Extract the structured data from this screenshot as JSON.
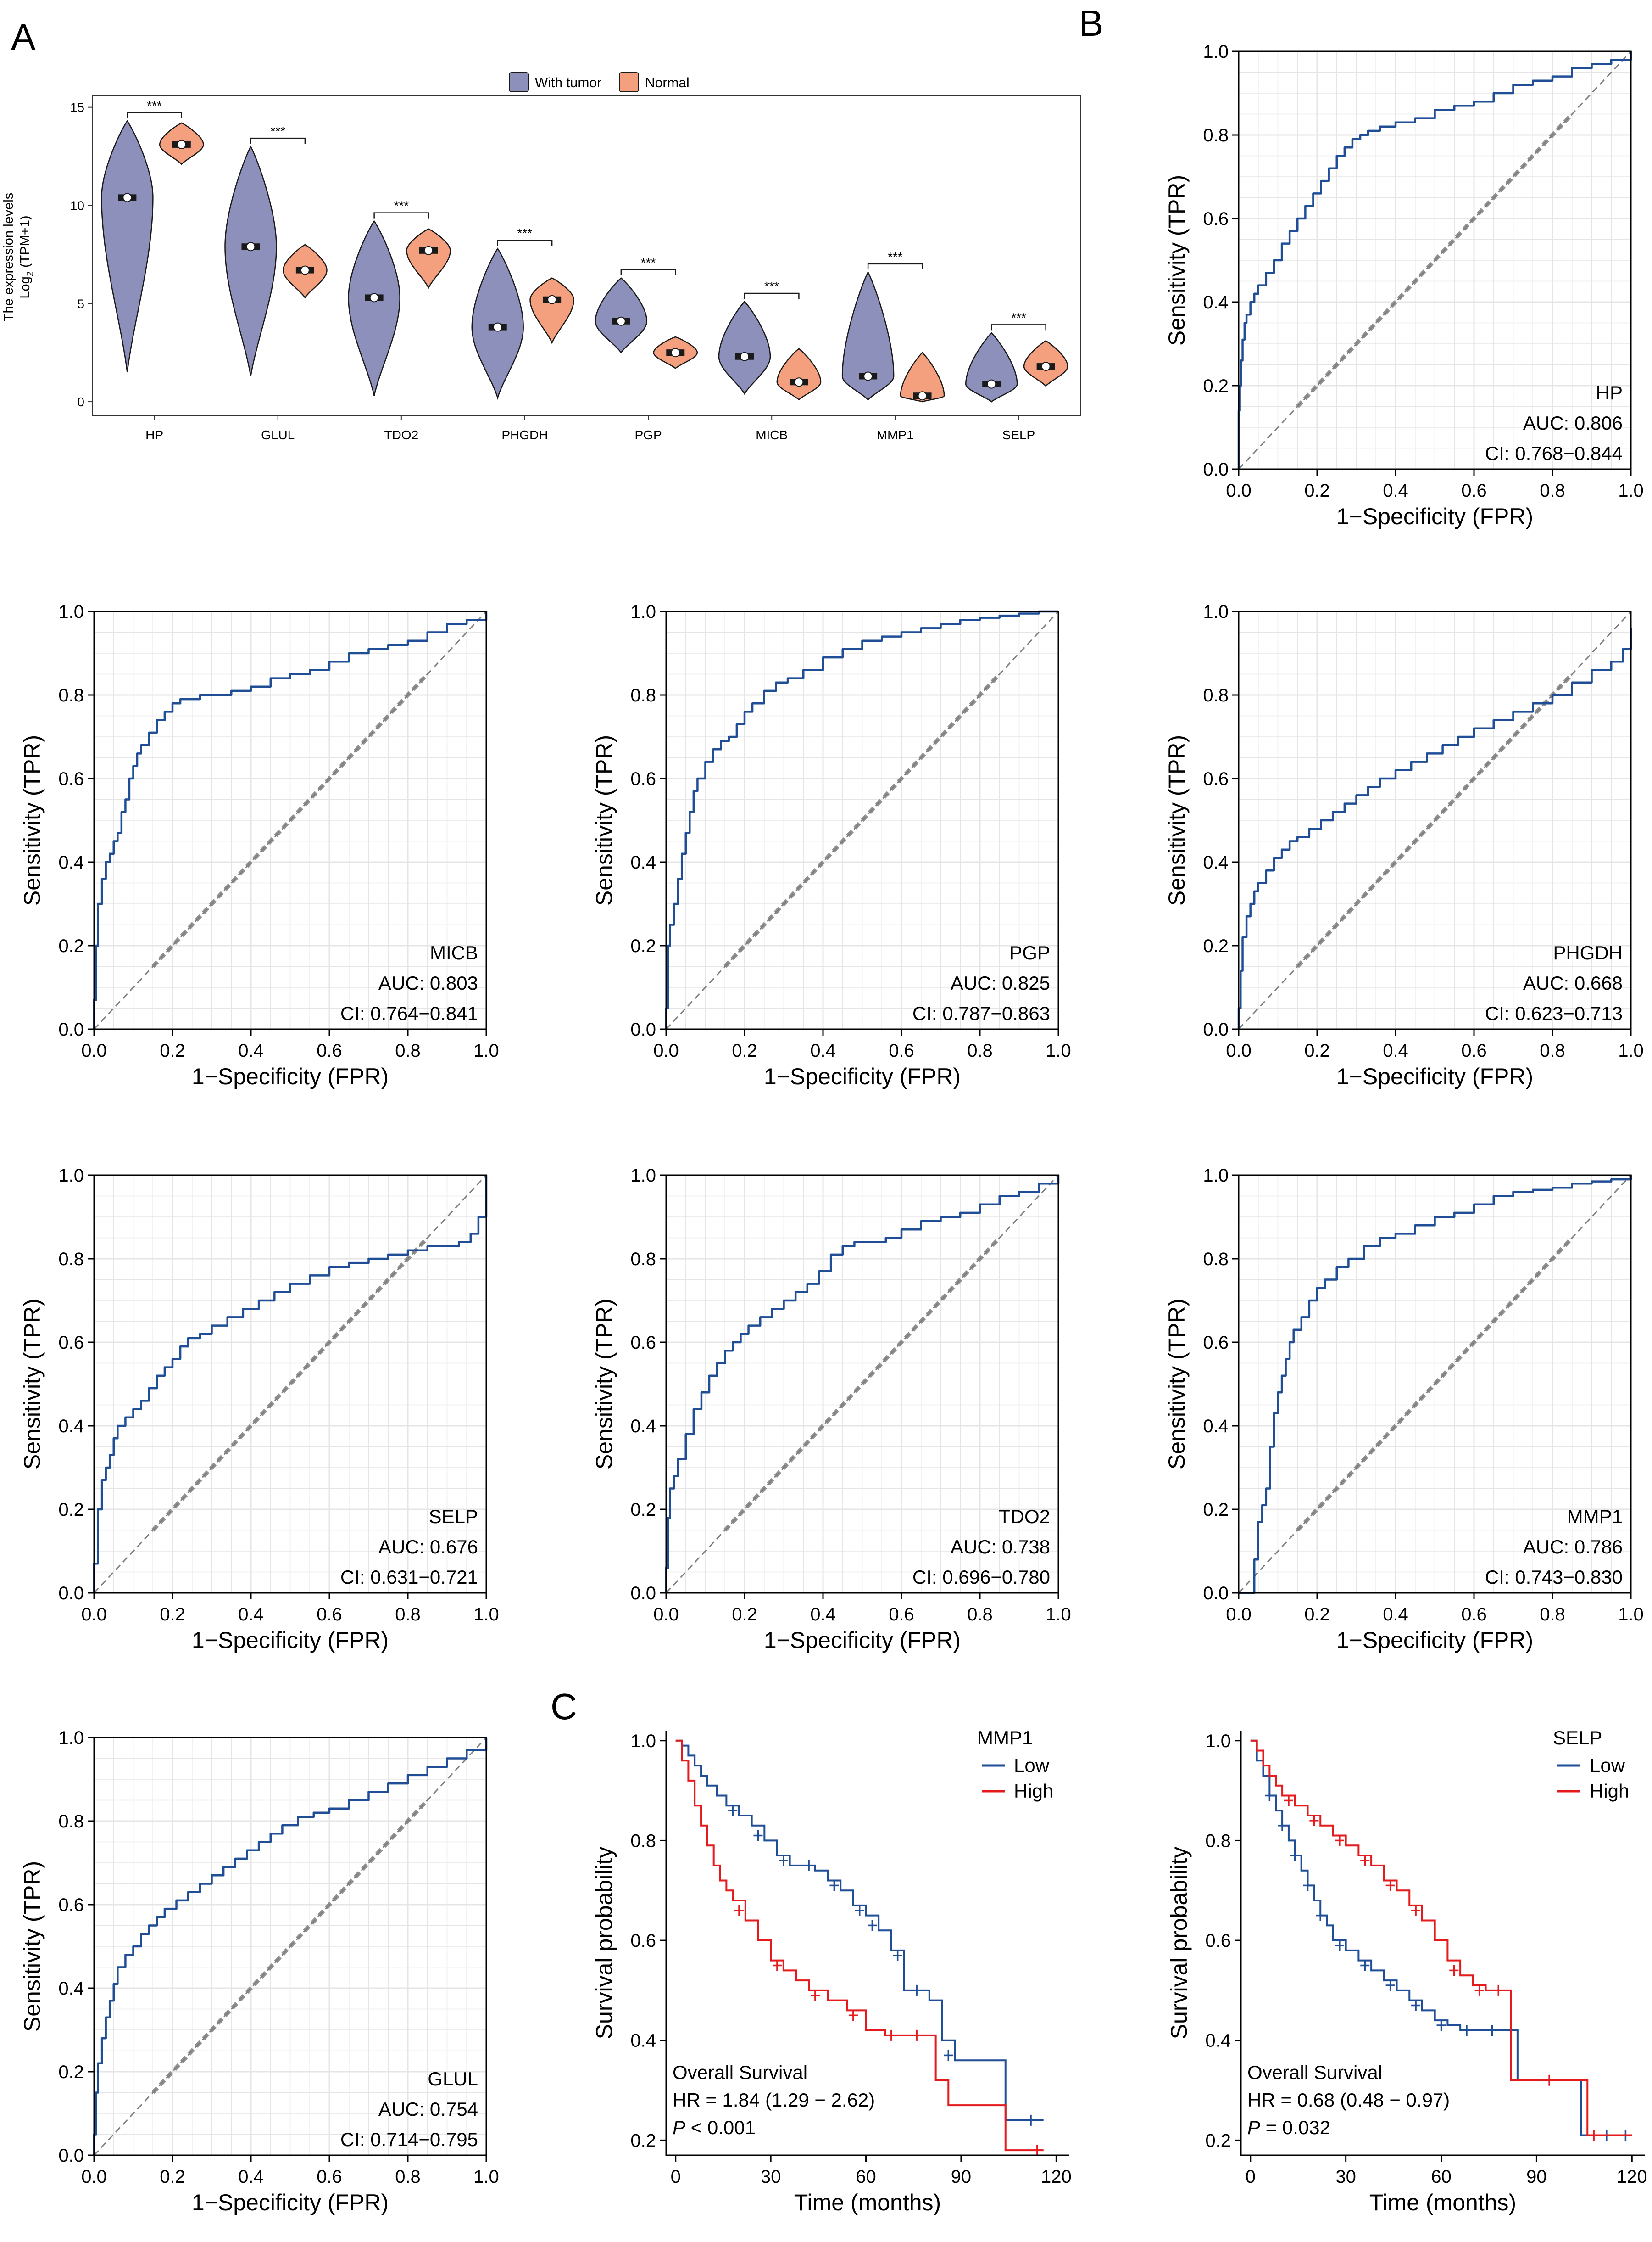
{
  "panel_labels": {
    "A": "A",
    "B": "B",
    "C": "C"
  },
  "colors": {
    "tumor": "#8C90BB",
    "normal": "#F4A07E",
    "roc": "#1F4E96",
    "diag": "#7F7F7F",
    "km_low": "#1F4E96",
    "km_high": "#E41A1C",
    "grid": "#E5E5E5"
  },
  "chart_data": [
    {
      "type": "violin",
      "id": "violin",
      "ylabel_line1": "The expression levels",
      "ylabel_line2": "Log2 (TPM+1)",
      "ylim": [
        -0.7,
        15.6
      ],
      "yticks": [
        0,
        5,
        10,
        15
      ],
      "legend": [
        "With tumor",
        "Normal"
      ],
      "significance": "***",
      "categories": [
        "HP",
        "GLUL",
        "TDO2",
        "PHGDH",
        "PGP",
        "MICB",
        "MMP1",
        "SELP"
      ],
      "series": [
        {
          "name": "With tumor",
          "median": [
            10.4,
            7.9,
            5.3,
            3.8,
            4.1,
            2.3,
            1.3,
            0.9
          ],
          "min": [
            1.5,
            1.3,
            0.3,
            0.2,
            2.5,
            0.4,
            0.1,
            0.0
          ],
          "max": [
            14.3,
            13.0,
            9.2,
            7.8,
            6.3,
            5.1,
            6.6,
            3.5
          ]
        },
        {
          "name": "Normal",
          "median": [
            13.1,
            6.7,
            7.7,
            5.2,
            2.5,
            1.0,
            0.3,
            1.8
          ],
          "min": [
            12.1,
            5.3,
            5.8,
            3.0,
            1.7,
            0.1,
            0.0,
            0.8
          ],
          "max": [
            14.2,
            8.0,
            8.8,
            6.3,
            3.3,
            2.7,
            2.5,
            3.1
          ]
        }
      ]
    },
    {
      "type": "roc",
      "id": "roc-hp",
      "gene": "HP",
      "auc": "AUC: 0.806",
      "ci": "CI: 0.768−0.844",
      "x": [
        0,
        0,
        0.003,
        0.006,
        0.01,
        0.015,
        0.02,
        0.03,
        0.04,
        0.05,
        0.07,
        0.09,
        0.11,
        0.13,
        0.15,
        0.17,
        0.19,
        0.21,
        0.23,
        0.25,
        0.27,
        0.29,
        0.31,
        0.33,
        0.36,
        0.4,
        0.45,
        0.5,
        0.55,
        0.6,
        0.65,
        0.7,
        0.75,
        0.8,
        0.85,
        0.9,
        0.95,
        1.0
      ],
      "y": [
        0,
        0.14,
        0.2,
        0.26,
        0.31,
        0.35,
        0.37,
        0.4,
        0.42,
        0.44,
        0.47,
        0.5,
        0.54,
        0.57,
        0.6,
        0.63,
        0.66,
        0.69,
        0.72,
        0.75,
        0.77,
        0.79,
        0.8,
        0.81,
        0.82,
        0.83,
        0.84,
        0.86,
        0.87,
        0.88,
        0.9,
        0.92,
        0.93,
        0.94,
        0.96,
        0.97,
        0.98,
        1.0
      ]
    },
    {
      "type": "roc",
      "id": "roc-micb",
      "gene": "MICB",
      "auc": "AUC: 0.803",
      "ci": "CI: 0.764−0.841",
      "x": [
        0,
        0,
        0.005,
        0.01,
        0.02,
        0.03,
        0.04,
        0.05,
        0.06,
        0.07,
        0.08,
        0.09,
        0.1,
        0.11,
        0.12,
        0.14,
        0.16,
        0.18,
        0.2,
        0.22,
        0.24,
        0.27,
        0.3,
        0.35,
        0.4,
        0.45,
        0.5,
        0.55,
        0.6,
        0.65,
        0.7,
        0.75,
        0.8,
        0.85,
        0.9,
        0.95,
        1.0
      ],
      "y": [
        0,
        0.07,
        0.2,
        0.3,
        0.36,
        0.4,
        0.42,
        0.45,
        0.47,
        0.52,
        0.55,
        0.6,
        0.63,
        0.66,
        0.68,
        0.71,
        0.74,
        0.76,
        0.78,
        0.79,
        0.79,
        0.8,
        0.8,
        0.81,
        0.82,
        0.84,
        0.85,
        0.86,
        0.88,
        0.9,
        0.91,
        0.92,
        0.93,
        0.95,
        0.97,
        0.98,
        1.0
      ]
    },
    {
      "type": "roc",
      "id": "roc-pgp",
      "gene": "PGP",
      "auc": "AUC: 0.825",
      "ci": "CI: 0.787−0.863",
      "x": [
        0,
        0,
        0.005,
        0.01,
        0.02,
        0.03,
        0.04,
        0.05,
        0.06,
        0.07,
        0.08,
        0.1,
        0.12,
        0.14,
        0.16,
        0.18,
        0.2,
        0.22,
        0.25,
        0.28,
        0.31,
        0.35,
        0.4,
        0.45,
        0.5,
        0.55,
        0.6,
        0.65,
        0.7,
        0.75,
        0.8,
        0.85,
        0.9,
        0.95,
        1.0
      ],
      "y": [
        0,
        0.05,
        0.2,
        0.25,
        0.3,
        0.36,
        0.42,
        0.47,
        0.52,
        0.57,
        0.6,
        0.64,
        0.67,
        0.69,
        0.7,
        0.73,
        0.76,
        0.78,
        0.81,
        0.83,
        0.84,
        0.86,
        0.89,
        0.91,
        0.93,
        0.94,
        0.95,
        0.96,
        0.97,
        0.98,
        0.985,
        0.99,
        0.995,
        1.0,
        1.0
      ]
    },
    {
      "type": "roc",
      "id": "roc-phgdh",
      "gene": "PHGDH",
      "auc": "AUC: 0.668",
      "ci": "CI: 0.623−0.713",
      "x": [
        0,
        0,
        0.005,
        0.01,
        0.02,
        0.03,
        0.04,
        0.05,
        0.07,
        0.09,
        0.11,
        0.13,
        0.15,
        0.18,
        0.21,
        0.24,
        0.27,
        0.3,
        0.33,
        0.36,
        0.4,
        0.44,
        0.48,
        0.52,
        0.56,
        0.6,
        0.65,
        0.7,
        0.75,
        0.8,
        0.85,
        0.9,
        0.95,
        0.98,
        1.0
      ],
      "y": [
        0,
        0.05,
        0.14,
        0.22,
        0.27,
        0.3,
        0.33,
        0.35,
        0.38,
        0.41,
        0.43,
        0.45,
        0.46,
        0.48,
        0.5,
        0.52,
        0.54,
        0.56,
        0.58,
        0.6,
        0.62,
        0.64,
        0.66,
        0.68,
        0.7,
        0.72,
        0.74,
        0.76,
        0.78,
        0.8,
        0.83,
        0.86,
        0.88,
        0.91,
        0.96
      ]
    },
    {
      "type": "roc",
      "id": "roc-selp",
      "gene": "SELP",
      "auc": "AUC: 0.676",
      "ci": "CI: 0.631−0.721",
      "x": [
        0,
        0,
        0.01,
        0.02,
        0.03,
        0.04,
        0.05,
        0.06,
        0.08,
        0.1,
        0.12,
        0.14,
        0.16,
        0.18,
        0.2,
        0.22,
        0.24,
        0.27,
        0.3,
        0.34,
        0.38,
        0.42,
        0.46,
        0.5,
        0.55,
        0.6,
        0.65,
        0.7,
        0.75,
        0.8,
        0.85,
        0.9,
        0.93,
        0.96,
        0.98,
        1.0
      ],
      "y": [
        0,
        0.07,
        0.2,
        0.27,
        0.3,
        0.33,
        0.37,
        0.4,
        0.42,
        0.44,
        0.46,
        0.49,
        0.52,
        0.54,
        0.56,
        0.59,
        0.61,
        0.62,
        0.64,
        0.66,
        0.68,
        0.7,
        0.72,
        0.74,
        0.76,
        0.78,
        0.79,
        0.8,
        0.81,
        0.82,
        0.83,
        0.83,
        0.84,
        0.86,
        0.9,
        1.0
      ]
    },
    {
      "type": "roc",
      "id": "roc-tdo2",
      "gene": "TDO2",
      "auc": "AUC: 0.738",
      "ci": "CI: 0.696−0.780",
      "x": [
        0,
        0,
        0.005,
        0.01,
        0.02,
        0.03,
        0.05,
        0.07,
        0.09,
        0.11,
        0.13,
        0.15,
        0.17,
        0.19,
        0.21,
        0.24,
        0.27,
        0.3,
        0.33,
        0.36,
        0.39,
        0.42,
        0.45,
        0.48,
        0.52,
        0.56,
        0.6,
        0.65,
        0.7,
        0.75,
        0.8,
        0.85,
        0.9,
        0.95,
        1.0
      ],
      "y": [
        0,
        0.06,
        0.18,
        0.25,
        0.28,
        0.32,
        0.38,
        0.44,
        0.48,
        0.52,
        0.55,
        0.58,
        0.6,
        0.62,
        0.64,
        0.66,
        0.68,
        0.7,
        0.72,
        0.74,
        0.77,
        0.81,
        0.83,
        0.84,
        0.84,
        0.85,
        0.87,
        0.89,
        0.9,
        0.91,
        0.93,
        0.95,
        0.96,
        0.98,
        1.0
      ]
    },
    {
      "type": "roc",
      "id": "roc-mmp1",
      "gene": "MMP1",
      "auc": "AUC: 0.786",
      "ci": "CI: 0.743−0.830",
      "x": [
        0,
        0.03,
        0.04,
        0.05,
        0.06,
        0.07,
        0.08,
        0.09,
        0.1,
        0.11,
        0.12,
        0.13,
        0.14,
        0.16,
        0.18,
        0.2,
        0.22,
        0.25,
        0.28,
        0.32,
        0.36,
        0.4,
        0.45,
        0.5,
        0.55,
        0.6,
        0.65,
        0.7,
        0.75,
        0.8,
        0.85,
        0.9,
        0.95,
        1.0
      ],
      "y": [
        0,
        0,
        0.08,
        0.17,
        0.21,
        0.25,
        0.35,
        0.43,
        0.48,
        0.52,
        0.56,
        0.6,
        0.63,
        0.66,
        0.7,
        0.73,
        0.75,
        0.78,
        0.8,
        0.83,
        0.85,
        0.86,
        0.88,
        0.9,
        0.91,
        0.93,
        0.95,
        0.96,
        0.965,
        0.97,
        0.98,
        0.985,
        0.99,
        1.0
      ]
    },
    {
      "type": "roc",
      "id": "roc-glul",
      "gene": "GLUL",
      "auc": "AUC: 0.754",
      "ci": "CI: 0.714−0.795",
      "x": [
        0,
        0,
        0.005,
        0.01,
        0.02,
        0.03,
        0.04,
        0.05,
        0.06,
        0.08,
        0.1,
        0.12,
        0.14,
        0.16,
        0.18,
        0.21,
        0.24,
        0.27,
        0.3,
        0.33,
        0.36,
        0.39,
        0.42,
        0.45,
        0.48,
        0.52,
        0.56,
        0.6,
        0.65,
        0.7,
        0.75,
        0.8,
        0.85,
        0.9,
        0.95,
        1.0
      ],
      "y": [
        0,
        0.05,
        0.15,
        0.22,
        0.28,
        0.33,
        0.37,
        0.41,
        0.45,
        0.48,
        0.5,
        0.53,
        0.55,
        0.57,
        0.59,
        0.61,
        0.63,
        0.65,
        0.67,
        0.69,
        0.71,
        0.73,
        0.75,
        0.77,
        0.79,
        0.81,
        0.82,
        0.83,
        0.85,
        0.87,
        0.89,
        0.91,
        0.93,
        0.95,
        0.97,
        1.0
      ]
    },
    {
      "type": "km",
      "id": "km-mmp1",
      "gene": "MMP1",
      "legend": [
        "Low",
        "High"
      ],
      "ylabel": "Survival probability",
      "xlabel": "Time (months)",
      "xticks": [
        0,
        30,
        60,
        90,
        120
      ],
      "yticks": [
        0.2,
        0.4,
        0.6,
        0.8,
        1.0
      ],
      "xlim": [
        -3,
        124
      ],
      "ylim": [
        0.17,
        1.02
      ],
      "stat1": "Overall Survival",
      "stat2": "HR = 1.84 (1.29 − 2.62)",
      "stat3_italic": "P",
      "stat3_rest": " < 0.001",
      "series": [
        {
          "name": "Low",
          "x": [
            0,
            2,
            4,
            6,
            8,
            10,
            13,
            16,
            20,
            24,
            28,
            32,
            36,
            40,
            44,
            48,
            52,
            56,
            60,
            64,
            68,
            72,
            80,
            84,
            88,
            104,
            108,
            116
          ],
          "y": [
            1,
            0.99,
            0.97,
            0.95,
            0.93,
            0.91,
            0.89,
            0.87,
            0.85,
            0.83,
            0.8,
            0.77,
            0.75,
            0.75,
            0.74,
            0.72,
            0.7,
            0.67,
            0.65,
            0.62,
            0.58,
            0.5,
            0.48,
            0.4,
            0.36,
            0.24,
            0.24,
            0.24
          ],
          "censor": [
            [
              18,
              0.86
            ],
            [
              26,
              0.81
            ],
            [
              34,
              0.76
            ],
            [
              42,
              0.75
            ],
            [
              50,
              0.71
            ],
            [
              58,
              0.66
            ],
            [
              62,
              0.63
            ],
            [
              70,
              0.57
            ],
            [
              76,
              0.5
            ],
            [
              86,
              0.37
            ],
            [
              112,
              0.24
            ]
          ]
        },
        {
          "name": "High",
          "x": [
            0,
            2,
            4,
            6,
            8,
            10,
            12,
            14,
            16,
            18,
            22,
            26,
            30,
            34,
            38,
            42,
            48,
            54,
            60,
            66,
            72,
            80,
            82,
            86,
            90,
            104,
            110,
            116
          ],
          "y": [
            1,
            0.96,
            0.92,
            0.87,
            0.83,
            0.79,
            0.75,
            0.72,
            0.7,
            0.68,
            0.64,
            0.6,
            0.56,
            0.54,
            0.52,
            0.5,
            0.48,
            0.46,
            0.42,
            0.41,
            0.41,
            0.41,
            0.32,
            0.27,
            0.27,
            0.18,
            0.18,
            0.18
          ],
          "censor": [
            [
              20,
              0.66
            ],
            [
              32,
              0.55
            ],
            [
              44,
              0.49
            ],
            [
              56,
              0.45
            ],
            [
              68,
              0.41
            ],
            [
              76,
              0.41
            ],
            [
              114,
              0.18
            ]
          ]
        }
      ]
    },
    {
      "type": "km",
      "id": "km-selp",
      "gene": "SELP",
      "legend": [
        "Low",
        "High"
      ],
      "ylabel": "Survival probability",
      "xlabel": "Time (months)",
      "xticks": [
        0,
        30,
        60,
        90,
        120
      ],
      "yticks": [
        0.2,
        0.4,
        0.6,
        0.8,
        1.0
      ],
      "xlim": [
        -3,
        124
      ],
      "ylim": [
        0.17,
        1.02
      ],
      "stat1": "Overall Survival",
      "stat2": "HR = 0.68 (0.48 − 0.97)",
      "stat3_italic": "P",
      "stat3_rest": " = 0.032",
      "series": [
        {
          "name": "Low",
          "x": [
            0,
            2,
            4,
            6,
            8,
            10,
            12,
            14,
            16,
            18,
            20,
            22,
            24,
            26,
            30,
            34,
            38,
            42,
            46,
            50,
            54,
            58,
            62,
            66,
            72,
            80,
            84,
            90,
            104,
            110,
            120
          ],
          "y": [
            1,
            0.96,
            0.93,
            0.89,
            0.86,
            0.83,
            0.8,
            0.77,
            0.74,
            0.71,
            0.68,
            0.65,
            0.63,
            0.6,
            0.58,
            0.56,
            0.54,
            0.52,
            0.5,
            0.48,
            0.46,
            0.44,
            0.43,
            0.42,
            0.42,
            0.42,
            0.32,
            0.32,
            0.21,
            0.21,
            0.21
          ],
          "censor": [
            [
              6,
              0.89
            ],
            [
              10,
              0.83
            ],
            [
              14,
              0.77
            ],
            [
              18,
              0.71
            ],
            [
              22,
              0.65
            ],
            [
              28,
              0.59
            ],
            [
              36,
              0.55
            ],
            [
              44,
              0.51
            ],
            [
              52,
              0.47
            ],
            [
              60,
              0.43
            ],
            [
              68,
              0.42
            ],
            [
              76,
              0.42
            ],
            [
              112,
              0.21
            ],
            [
              118,
              0.21
            ]
          ]
        },
        {
          "name": "High",
          "x": [
            0,
            2,
            4,
            6,
            8,
            10,
            14,
            18,
            22,
            26,
            30,
            34,
            38,
            42,
            46,
            50,
            54,
            58,
            62,
            66,
            70,
            74,
            80,
            82,
            90,
            100,
            106,
            110,
            120
          ],
          "y": [
            1,
            0.98,
            0.95,
            0.93,
            0.91,
            0.89,
            0.87,
            0.85,
            0.83,
            0.81,
            0.79,
            0.77,
            0.75,
            0.72,
            0.7,
            0.67,
            0.64,
            0.6,
            0.56,
            0.53,
            0.51,
            0.5,
            0.5,
            0.32,
            0.32,
            0.32,
            0.21,
            0.21,
            0.21
          ],
          "censor": [
            [
              12,
              0.88
            ],
            [
              20,
              0.84
            ],
            [
              28,
              0.8
            ],
            [
              36,
              0.76
            ],
            [
              44,
              0.71
            ],
            [
              52,
              0.66
            ],
            [
              64,
              0.54
            ],
            [
              72,
              0.5
            ],
            [
              78,
              0.5
            ],
            [
              94,
              0.32
            ],
            [
              108,
              0.21
            ]
          ]
        }
      ]
    }
  ],
  "roc_axis": {
    "xlabel": "1−Specificity (FPR)",
    "ylabel": "Sensitivity (TPR)",
    "ticks": [
      "0.0",
      "0.2",
      "0.4",
      "0.6",
      "0.8",
      "1.0"
    ]
  }
}
